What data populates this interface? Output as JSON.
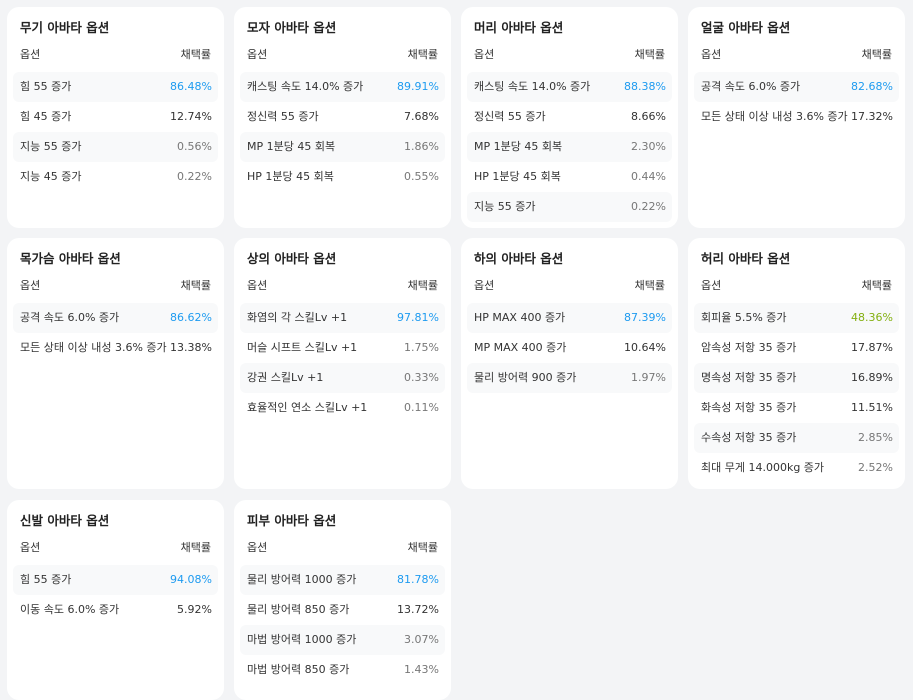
{
  "header_option": "옵션",
  "header_rate": "채택률",
  "colors": {
    "top": "#1e9bf0",
    "top_low": "#84b012"
  },
  "cards": [
    {
      "title": "무기 아바타 옵션",
      "rows": [
        [
          "힘 55 증가",
          "86.48%"
        ],
        [
          "힘 45 증가",
          "12.74%"
        ],
        [
          "지능 55 증가",
          "0.56%"
        ],
        [
          "지능 45 증가",
          "0.22%"
        ]
      ]
    },
    {
      "title": "모자 아바타 옵션",
      "rows": [
        [
          "캐스팅 속도 14.0% 증가",
          "89.91%"
        ],
        [
          "정신력 55 증가",
          "7.68%"
        ],
        [
          "MP 1분당 45 회복",
          "1.86%"
        ],
        [
          "HP 1분당 45 회복",
          "0.55%"
        ]
      ]
    },
    {
      "title": "머리 아바타 옵션",
      "rows": [
        [
          "캐스팅 속도 14.0% 증가",
          "88.38%"
        ],
        [
          "정신력 55 증가",
          "8.66%"
        ],
        [
          "MP 1분당 45 회복",
          "2.30%"
        ],
        [
          "HP 1분당 45 회복",
          "0.44%"
        ],
        [
          "지능 55 증가",
          "0.22%"
        ]
      ]
    },
    {
      "title": "얼굴 아바타 옵션",
      "rows": [
        [
          "공격 속도 6.0% 증가",
          "82.68%"
        ],
        [
          "모든 상태 이상 내성 3.6% 증가",
          "17.32%"
        ]
      ]
    },
    {
      "title": "목가슴 아바타 옵션",
      "rows": [
        [
          "공격 속도 6.0% 증가",
          "86.62%"
        ],
        [
          "모든 상태 이상 내성 3.6% 증가",
          "13.38%"
        ]
      ]
    },
    {
      "title": "상의 아바타 옵션",
      "rows": [
        [
          "화염의 각 스킬Lv +1",
          "97.81%"
        ],
        [
          "머슬 시프트 스킬Lv +1",
          "1.75%"
        ],
        [
          "강권 스킬Lv +1",
          "0.33%"
        ],
        [
          "효율적인 연소 스킬Lv +1",
          "0.11%"
        ]
      ]
    },
    {
      "title": "하의 아바타 옵션",
      "rows": [
        [
          "HP MAX 400 증가",
          "87.39%"
        ],
        [
          "MP MAX 400 증가",
          "10.64%"
        ],
        [
          "물리 방어력 900 증가",
          "1.97%"
        ]
      ]
    },
    {
      "title": "허리 아바타 옵션",
      "rows": [
        [
          "회피율 5.5% 증가",
          "48.36%"
        ],
        [
          "암속성 저항 35 증가",
          "17.87%"
        ],
        [
          "명속성 저항 35 증가",
          "16.89%"
        ],
        [
          "화속성 저항 35 증가",
          "11.51%"
        ],
        [
          "수속성 저항 35 증가",
          "2.85%"
        ],
        [
          "최대 무게 14.000kg 증가",
          "2.52%"
        ]
      ]
    },
    {
      "title": "신발 아바타 옵션",
      "rows": [
        [
          "힘 55 증가",
          "94.08%"
        ],
        [
          "이동 속도 6.0% 증가",
          "5.92%"
        ]
      ]
    },
    {
      "title": "피부 아바타 옵션",
      "rows": [
        [
          "물리 방어력 1000 증가",
          "81.78%"
        ],
        [
          "물리 방어력 850 증가",
          "13.72%"
        ],
        [
          "마법 방어력 1000 증가",
          "3.07%"
        ],
        [
          "마법 방어력 850 증가",
          "1.43%"
        ]
      ]
    }
  ]
}
